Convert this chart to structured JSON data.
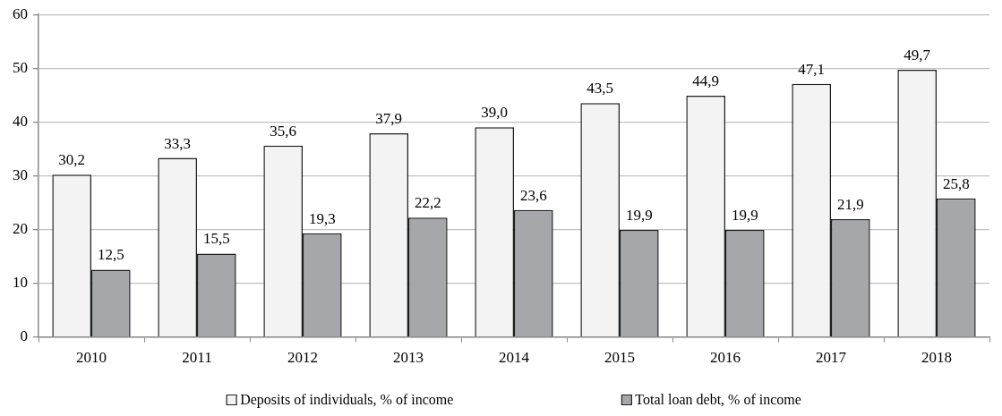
{
  "chart_data": {
    "type": "bar",
    "categories": [
      "2010",
      "2011",
      "2012",
      "2013",
      "2014",
      "2015",
      "2016",
      "2017",
      "2018"
    ],
    "series": [
      {
        "name": "Deposits of individuals, % of income",
        "color": "#f2f3f2",
        "values": [
          30.2,
          33.3,
          35.6,
          37.9,
          39.0,
          43.5,
          44.9,
          47.1,
          49.7
        ],
        "value_labels": [
          "30,2",
          "33,3",
          "35,6",
          "37,9",
          "39,0",
          "43,5",
          "44,9",
          "47,1",
          "49,7"
        ]
      },
      {
        "name": "Total loan debt, % of income",
        "color": "#a6a7aa",
        "values": [
          12.5,
          15.5,
          19.3,
          22.2,
          23.6,
          19.9,
          19.9,
          21.9,
          25.8
        ],
        "value_labels": [
          "12,5",
          "15,5",
          "19,3",
          "22,2",
          "23,6",
          "19,9",
          "19,9",
          "21,9",
          "25,8"
        ]
      }
    ],
    "ylim": [
      0,
      60
    ],
    "yticks": [
      0,
      10,
      20,
      30,
      40,
      50,
      60
    ],
    "grid": "y",
    "legend": "bottom"
  }
}
